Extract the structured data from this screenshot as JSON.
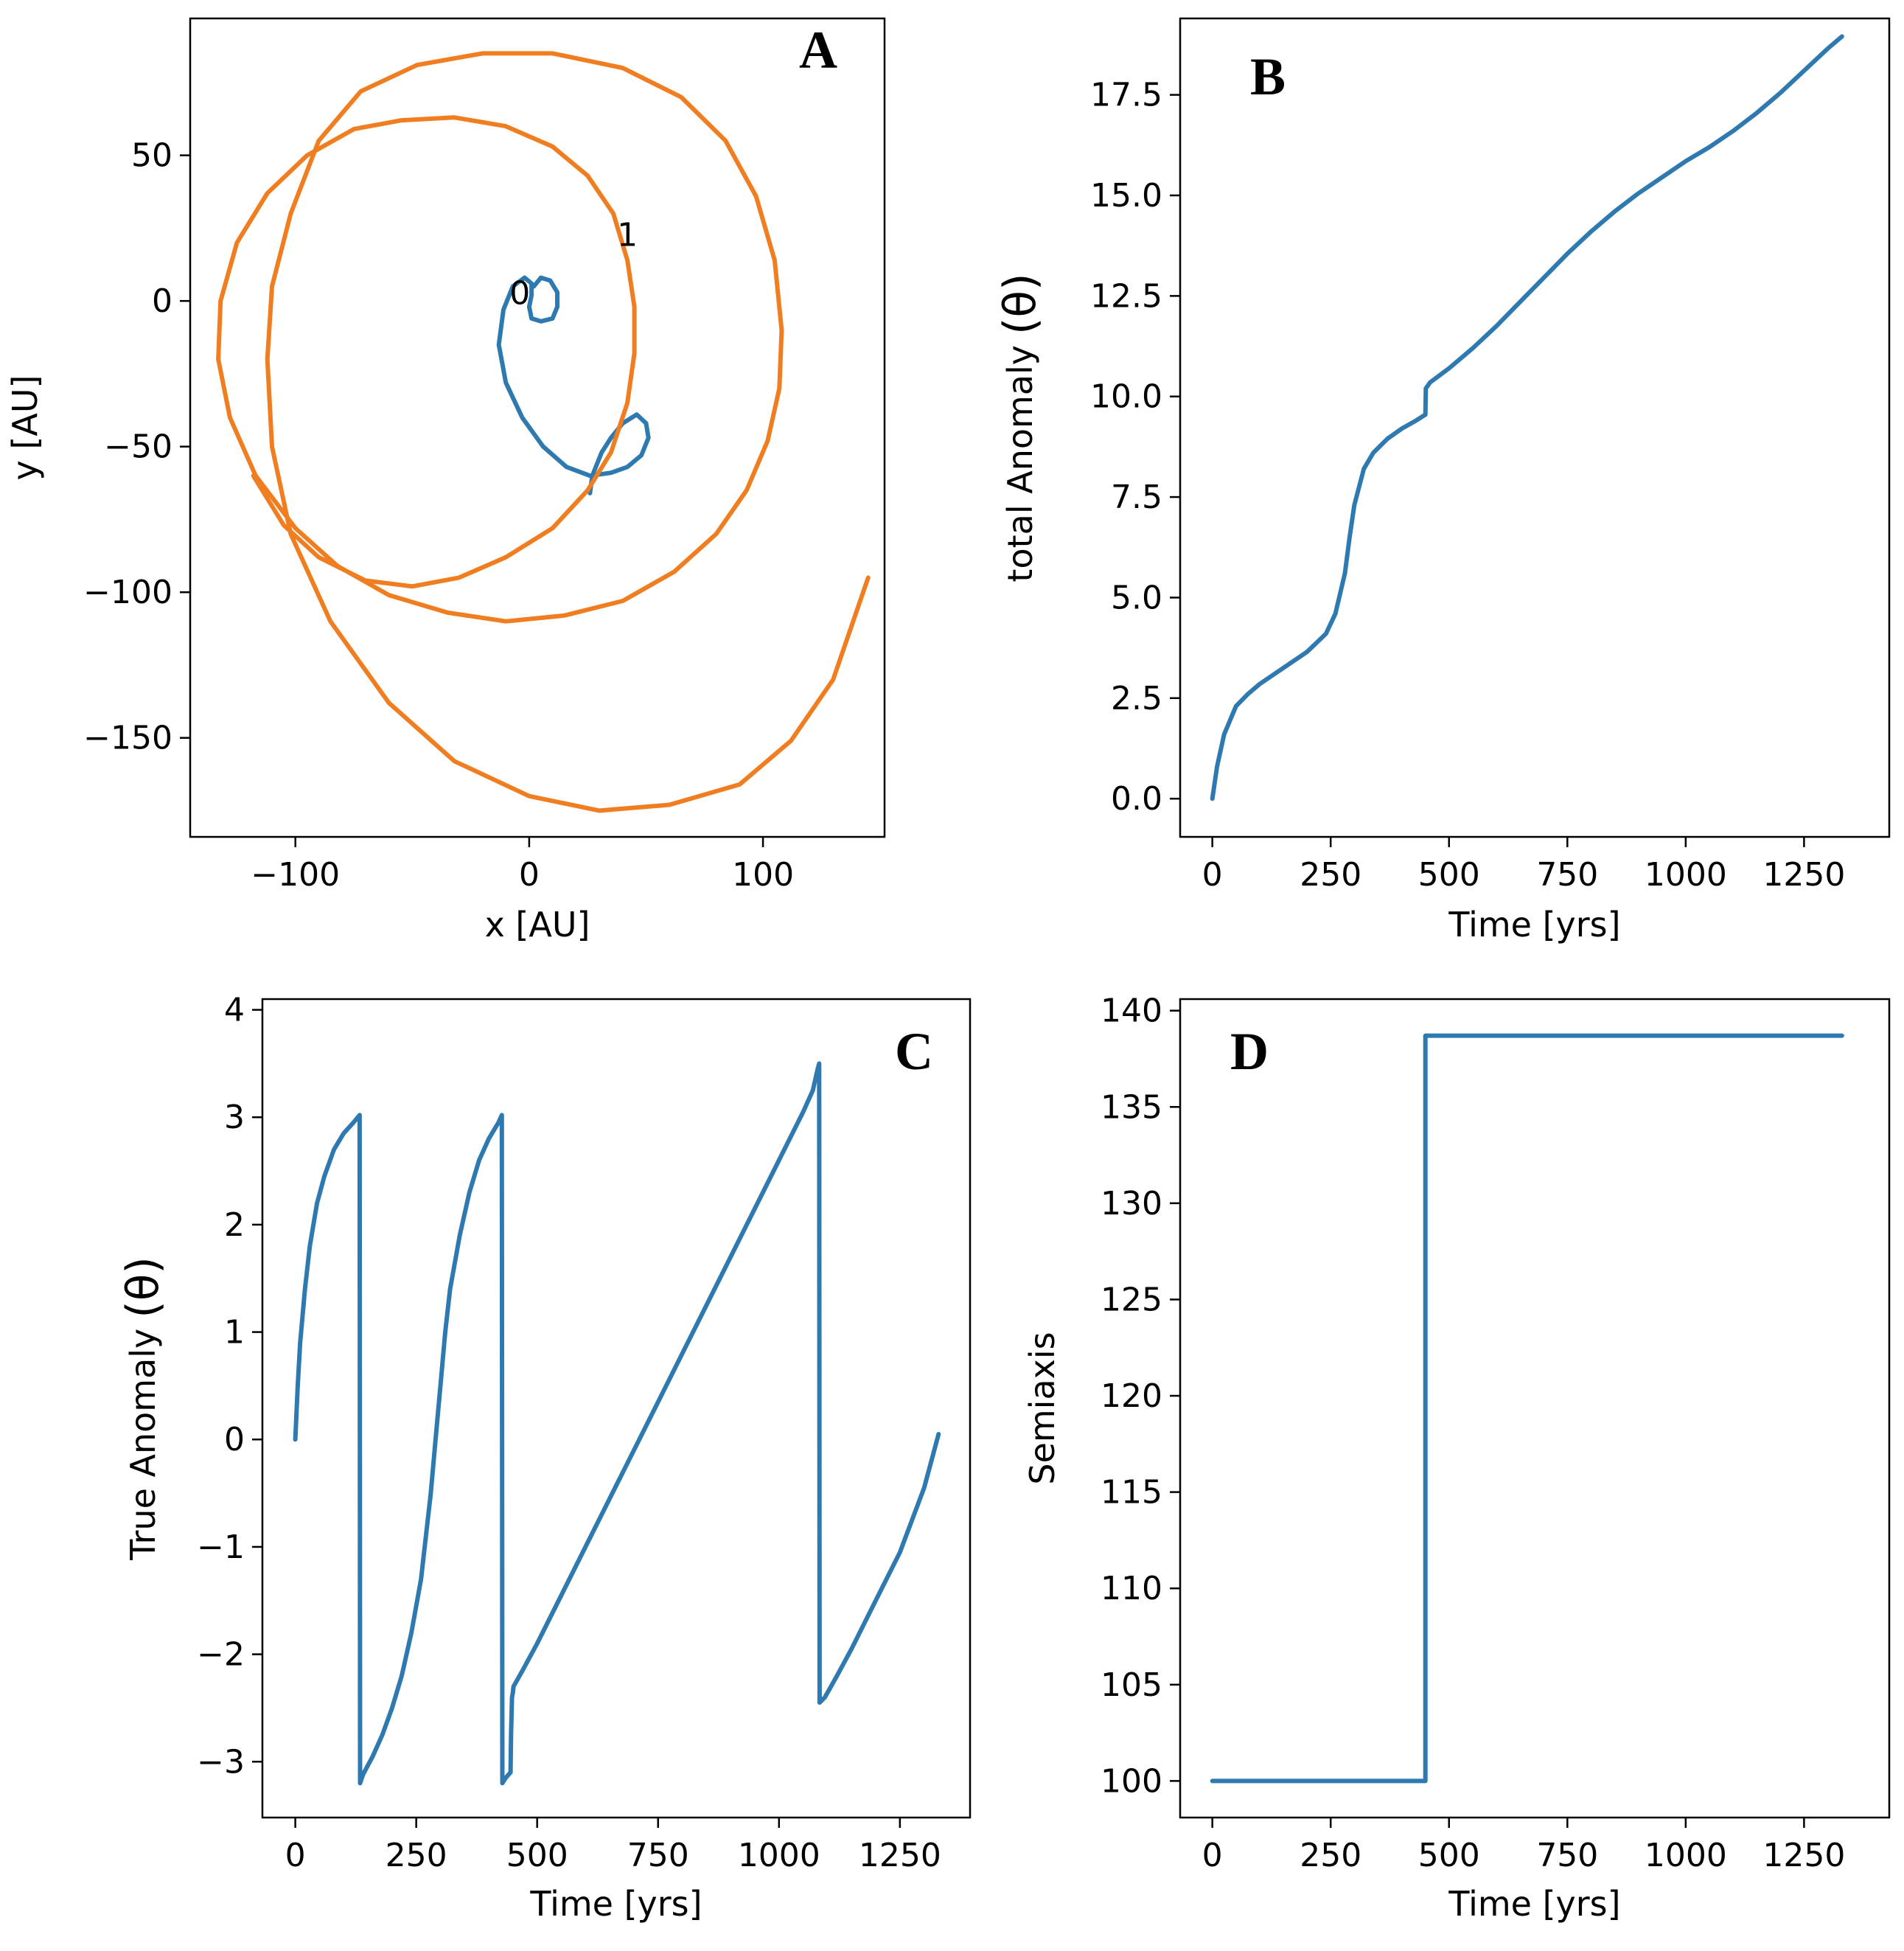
{
  "chart_data": [
    {
      "id": "A",
      "type": "line",
      "panel_letter": "A",
      "xlabel": "x [AU]",
      "ylabel": "y [AU]",
      "xlim": [
        -145,
        152
      ],
      "ylim": [
        -184,
        97
      ],
      "xticks": [
        -100,
        0,
        100
      ],
      "xtick_labels": [
        "−100",
        "0",
        "100"
      ],
      "yticks": [
        50,
        0,
        -50,
        -100,
        -150
      ],
      "ytick_labels": [
        "50",
        "0",
        "−50",
        "−100",
        "−150"
      ],
      "annotations": [
        {
          "text": "0",
          "x": -4,
          "y": 3
        },
        {
          "text": "1",
          "x": 42,
          "y": 23
        }
      ],
      "series": [
        {
          "name": "body 0",
          "color": "#2e7ab0",
          "points": [
            [
              26,
              -66
            ],
            [
              27,
              -60
            ],
            [
              31,
              -52
            ],
            [
              35,
              -47
            ],
            [
              40,
              -42
            ],
            [
              46,
              -39
            ],
            [
              50,
              -42
            ],
            [
              51,
              -47
            ],
            [
              48,
              -53
            ],
            [
              42,
              -57
            ],
            [
              35,
              -59
            ],
            [
              26,
              -60
            ],
            [
              16,
              -57
            ],
            [
              6,
              -50
            ],
            [
              -3,
              -40
            ],
            [
              -10,
              -28
            ],
            [
              -13,
              -15
            ],
            [
              -11,
              -3
            ],
            [
              -7,
              5
            ],
            [
              -2,
              8
            ],
            [
              1,
              6
            ],
            [
              1,
              2
            ],
            [
              0,
              -2
            ],
            [
              1,
              -6
            ],
            [
              5,
              -7
            ],
            [
              10,
              -6
            ],
            [
              12,
              -2
            ],
            [
              12,
              3
            ],
            [
              9,
              7
            ],
            [
              5,
              8
            ],
            [
              2,
              5
            ]
          ]
        },
        {
          "name": "body 1",
          "color": "#f07e21",
          "points": [
            [
              145,
              -95
            ],
            [
              130,
              -130
            ],
            [
              112,
              -151
            ],
            [
              90,
              -166
            ],
            [
              60,
              -173
            ],
            [
              30,
              -175
            ],
            [
              0,
              -170
            ],
            [
              -32,
              -158
            ],
            [
              -60,
              -138
            ],
            [
              -85,
              -110
            ],
            [
              -102,
              -80
            ],
            [
              -110,
              -50
            ],
            [
              -112,
              -20
            ],
            [
              -110,
              5
            ],
            [
              -102,
              30
            ],
            [
              -90,
              55
            ],
            [
              -72,
              72
            ],
            [
              -48,
              81
            ],
            [
              -20,
              85
            ],
            [
              10,
              85
            ],
            [
              40,
              80
            ],
            [
              65,
              70
            ],
            [
              84,
              55
            ],
            [
              97,
              36
            ],
            [
              105,
              14
            ],
            [
              108,
              -10
            ],
            [
              107,
              -30
            ],
            [
              102,
              -48
            ],
            [
              93,
              -65
            ],
            [
              80,
              -80
            ],
            [
              62,
              -93
            ],
            [
              40,
              -103
            ],
            [
              15,
              -108
            ],
            [
              -10,
              -110
            ],
            [
              -35,
              -107
            ],
            [
              -60,
              -101
            ],
            [
              -82,
              -91
            ],
            [
              -100,
              -78
            ],
            [
              -117,
              -60
            ],
            [
              -128,
              -40
            ],
            [
              -133,
              -20
            ],
            [
              -132,
              0
            ],
            [
              -125,
              20
            ],
            [
              -112,
              37
            ],
            [
              -95,
              50
            ],
            [
              -75,
              59
            ],
            [
              -55,
              62
            ],
            [
              -32,
              63
            ],
            [
              -10,
              60
            ],
            [
              10,
              53
            ],
            [
              25,
              43
            ],
            [
              36,
              30
            ],
            [
              42,
              14
            ],
            [
              45,
              -2
            ],
            [
              45,
              -18
            ],
            [
              42,
              -35
            ],
            [
              35,
              -52
            ],
            [
              25,
              -65
            ],
            [
              10,
              -78
            ],
            [
              -10,
              -88
            ],
            [
              -30,
              -95
            ],
            [
              -50,
              -98
            ],
            [
              -70,
              -96
            ],
            [
              -90,
              -88
            ],
            [
              -105,
              -77
            ],
            [
              -118,
              -60
            ]
          ]
        }
      ]
    },
    {
      "id": "B",
      "type": "line",
      "panel_letter": "B",
      "xlabel": "Time [yrs]",
      "ylabel": "total Anomaly",
      "ylabel_symbol": "(θ)",
      "xlim": [
        -68,
        1430
      ],
      "ylim": [
        -0.95,
        19.4
      ],
      "xticks": [
        0,
        250,
        500,
        750,
        1000,
        1250
      ],
      "xtick_labels": [
        "0",
        "250",
        "500",
        "750",
        "1000",
        "1250"
      ],
      "yticks": [
        0,
        2.5,
        5,
        7.5,
        10,
        12.5,
        15,
        17.5
      ],
      "ytick_labels": [
        "0.0",
        "2.5",
        "5.0",
        "7.5",
        "10.0",
        "12.5",
        "15.0",
        "17.5"
      ],
      "series": [
        {
          "name": "total anomaly",
          "color": "#2e7ab0",
          "x": [
            0,
            10,
            25,
            50,
            75,
            100,
            150,
            200,
            240,
            260,
            280,
            290,
            300,
            320,
            340,
            370,
            400,
            430,
            450,
            451,
            460,
            500,
            550,
            600,
            650,
            700,
            750,
            800,
            850,
            900,
            950,
            1000,
            1050,
            1100,
            1150,
            1200,
            1250,
            1300,
            1330
          ],
          "y": [
            0,
            0.8,
            1.6,
            2.3,
            2.6,
            2.85,
            3.25,
            3.65,
            4.1,
            4.6,
            5.6,
            6.5,
            7.3,
            8.2,
            8.6,
            8.95,
            9.2,
            9.4,
            9.55,
            10.2,
            10.35,
            10.7,
            11.2,
            11.75,
            12.35,
            12.95,
            13.55,
            14.1,
            14.6,
            15.05,
            15.45,
            15.85,
            16.2,
            16.6,
            17.05,
            17.55,
            18.1,
            18.65,
            18.95
          ]
        }
      ]
    },
    {
      "id": "C",
      "type": "line",
      "panel_letter": "C",
      "xlabel": "Time [yrs]",
      "ylabel": "True Anomaly",
      "ylabel_symbol": "(θ)",
      "xlim": [
        -68,
        1395
      ],
      "ylim": [
        -3.52,
        4.1
      ],
      "xticks": [
        0,
        250,
        500,
        750,
        1000,
        1250
      ],
      "xtick_labels": [
        "0",
        "250",
        "500",
        "750",
        "1000",
        "1250"
      ],
      "yticks": [
        4,
        3,
        2,
        1,
        0,
        -1,
        -2,
        -3
      ],
      "ytick_labels": [
        "4",
        "3",
        "2",
        "1",
        "0",
        "−1",
        "−2",
        "−3"
      ],
      "series": [
        {
          "name": "true anomaly",
          "color": "#2e7ab0",
          "x": [
            0,
            5,
            10,
            20,
            30,
            45,
            60,
            80,
            100,
            120,
            133,
            134,
            140,
            160,
            180,
            200,
            220,
            240,
            260,
            280,
            290,
            300,
            310,
            320,
            340,
            360,
            380,
            400,
            420,
            427,
            428,
            435,
            445,
            446,
            448,
            450,
            451,
            470,
            500,
            550,
            600,
            650,
            700,
            750,
            800,
            850,
            900,
            950,
            1000,
            1050,
            1070,
            1080,
            1083,
            1084,
            1095,
            1120,
            1150,
            1200,
            1250,
            1300,
            1330
          ],
          "y": [
            0,
            0.5,
            0.9,
            1.4,
            1.8,
            2.2,
            2.45,
            2.7,
            2.85,
            2.95,
            3.02,
            -3.2,
            -3.12,
            -2.95,
            -2.75,
            -2.5,
            -2.2,
            -1.8,
            -1.3,
            -0.5,
            0,
            0.5,
            1.0,
            1.4,
            1.9,
            2.3,
            2.6,
            2.8,
            2.95,
            3.02,
            -3.2,
            -3.15,
            -3.1,
            -2.75,
            -2.4,
            -2.35,
            -2.3,
            -2.15,
            -1.9,
            -1.45,
            -1.0,
            -0.55,
            -0.1,
            0.35,
            0.8,
            1.25,
            1.7,
            2.15,
            2.6,
            3.05,
            3.25,
            3.45,
            3.5,
            -2.45,
            -2.4,
            -2.2,
            -1.95,
            -1.5,
            -1.05,
            -0.45,
            0.05
          ]
        }
      ]
    },
    {
      "id": "D",
      "type": "line",
      "panel_letter": "D",
      "xlabel": "Time [yrs]",
      "ylabel": "Semiaxis",
      "xlim": [
        -68,
        1430
      ],
      "ylim": [
        98.1,
        140.6
      ],
      "xticks": [
        0,
        250,
        500,
        750,
        1000,
        1250
      ],
      "xtick_labels": [
        "0",
        "250",
        "500",
        "750",
        "1000",
        "1250"
      ],
      "yticks": [
        100,
        105,
        110,
        115,
        120,
        125,
        130,
        135,
        140
      ],
      "ytick_labels": [
        "100",
        "105",
        "110",
        "115",
        "120",
        "125",
        "130",
        "135",
        "140"
      ],
      "series": [
        {
          "name": "semiaxis",
          "color": "#2e7ab0",
          "x": [
            0,
            450,
            450,
            1330
          ],
          "y": [
            100,
            100,
            138.7,
            138.7
          ]
        }
      ]
    }
  ]
}
